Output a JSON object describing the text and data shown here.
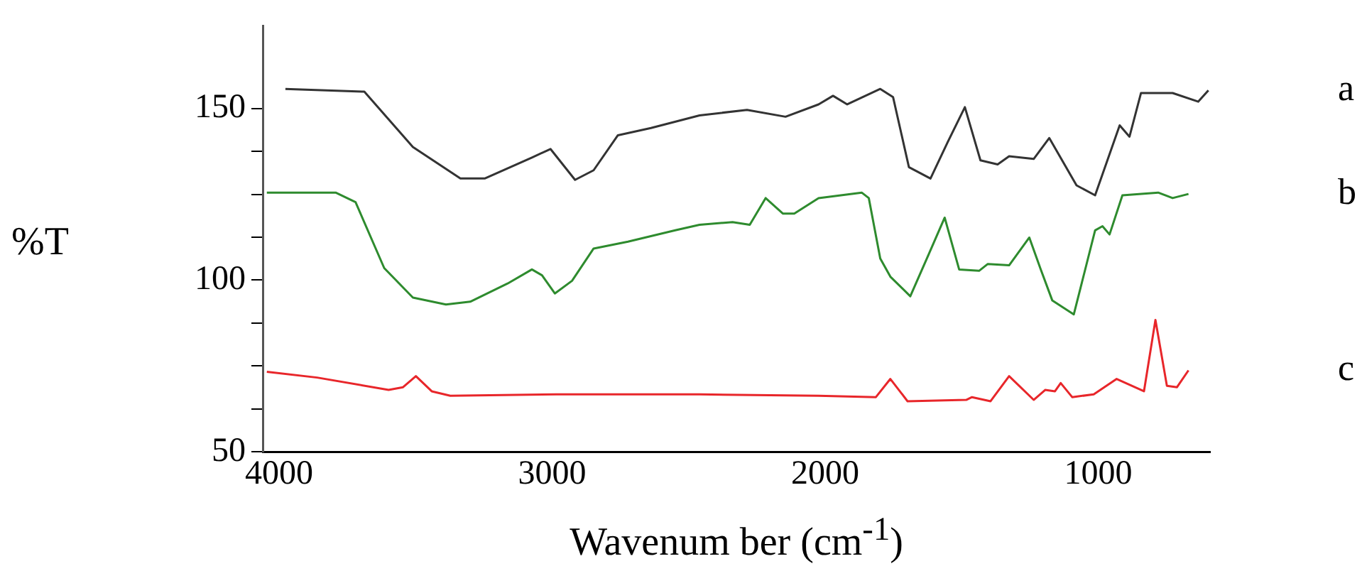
{
  "chart_data": {
    "type": "line",
    "xlabel": "Wavenum ber (cm$^{-1}$)",
    "ylabel": "%T",
    "xlim": [
      4060,
      590
    ],
    "xticks": [
      4000,
      3000,
      2000,
      1000
    ],
    "ylim": [
      50,
      174
    ],
    "yticks": [
      50,
      {
        "value": 62.5,
        "label": null
      },
      {
        "value": 75,
        "label": null
      },
      {
        "value": 87.5,
        "label": null
      },
      100,
      {
        "value": 112.5,
        "label": null
      },
      {
        "value": 125,
        "label": null
      },
      {
        "value": 137.5,
        "label": null
      },
      150
    ],
    "grid": false,
    "legend": false,
    "marker": "none",
    "line_style": "solid",
    "series": [
      {
        "name": "a",
        "color": "#333333",
        "x": [
          3977,
          3688,
          3510,
          3336,
          3247,
          3074,
          3006,
          2916,
          2848,
          2759,
          2638,
          2460,
          2286,
          2145,
          2024,
          1971,
          1919,
          1798,
          1751,
          1693,
          1614,
          1551,
          1488,
          1431,
          1368,
          1326,
          1236,
          1179,
          1079,
          1011,
          921,
          885,
          843,
          727,
          633,
          596
        ],
        "values": [
          155.7,
          154.9,
          138.8,
          129.6,
          129.6,
          135.7,
          138.2,
          129.2,
          132,
          142.2,
          144.3,
          148,
          149.6,
          147.6,
          151.2,
          153.7,
          151.2,
          155.7,
          153.3,
          132.9,
          129.6,
          140.2,
          150.4,
          134.9,
          133.7,
          136.1,
          135.3,
          141.4,
          127.6,
          124.7,
          145.1,
          141.8,
          154.5,
          154.5,
          152,
          155.3
        ]
      },
      {
        "name": "b",
        "color": "#2e8b2e",
        "x": [
          4045,
          3877,
          3793,
          3720,
          3615,
          3510,
          3389,
          3300,
          3163,
          3074,
          3037,
          2990,
          2927,
          2848,
          2722,
          2549,
          2460,
          2339,
          2276,
          2218,
          2155,
          2113,
          2024,
          1866,
          1840,
          1798,
          1761,
          1688,
          1620,
          1562,
          1509,
          1436,
          1404,
          1326,
          1252,
          1210,
          1168,
          1089,
          1011,
          984,
          958,
          911,
          780,
          727,
          669
        ],
        "values": [
          125.5,
          125.5,
          125.5,
          122.7,
          103.5,
          94.9,
          92.9,
          93.7,
          99,
          103.1,
          101.4,
          96.1,
          99.8,
          109.2,
          111.2,
          114.5,
          116.1,
          116.9,
          116.1,
          123.9,
          119.4,
          119.4,
          123.9,
          125.5,
          123.9,
          106.3,
          101,
          95.3,
          107.6,
          118.2,
          103.1,
          102.7,
          104.7,
          104.3,
          112.4,
          103.1,
          94.1,
          90,
          114.5,
          115.7,
          113.3,
          124.7,
          125.5,
          123.9,
          125.1
        ]
      },
      {
        "name": "c",
        "color": "#e8262a",
        "x": [
          4045,
          3861,
          3599,
          3546,
          3499,
          3441,
          3373,
          2985,
          2460,
          2024,
          1814,
          1761,
          1698,
          1483,
          1462,
          1394,
          1326,
          1236,
          1194,
          1158,
          1137,
          1095,
          1016,
          932,
          832,
          790,
          748,
          711,
          669
        ],
        "values": [
          73.3,
          71.6,
          68,
          68.8,
          72,
          67.6,
          66.3,
          66.7,
          66.7,
          66.3,
          65.9,
          71.2,
          64.7,
          65.1,
          65.9,
          64.7,
          72,
          65.1,
          68,
          67.6,
          70,
          65.9,
          66.7,
          71.2,
          67.6,
          88.4,
          69.2,
          68.8,
          73.7
        ]
      }
    ]
  }
}
